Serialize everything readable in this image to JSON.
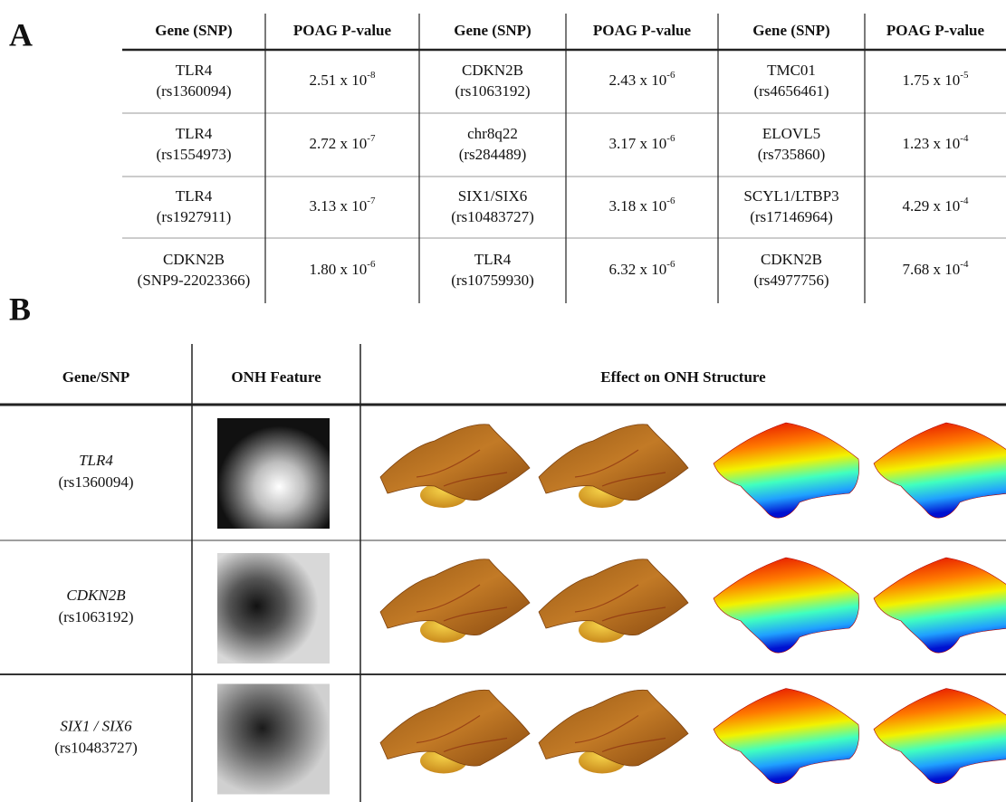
{
  "panel_a": {
    "label": "A",
    "table": {
      "header": [
        "Gene (SNP)",
        "POAG P-value",
        "Gene (SNP)",
        "POAG P-value",
        "Gene (SNP)",
        "POAG P-value"
      ],
      "rows": [
        [
          {
            "gene": "TLR4",
            "snp": "(rs1360094)"
          },
          {
            "mantissa": "2.51 x 10",
            "exponent": "-8"
          },
          {
            "gene": "CDKN2B",
            "snp": "(rs1063192)"
          },
          {
            "mantissa": "2.43 x 10",
            "exponent": "-6"
          },
          {
            "gene": "TMC01",
            "snp": "(rs4656461)"
          },
          {
            "mantissa": "1.75 x 10",
            "exponent": "-5"
          }
        ],
        [
          {
            "gene": "TLR4",
            "snp": "(rs1554973)"
          },
          {
            "mantissa": "2.72 x 10",
            "exponent": "-7"
          },
          {
            "gene": "chr8q22",
            "snp": "(rs284489)"
          },
          {
            "mantissa": "3.17 x 10",
            "exponent": "-6"
          },
          {
            "gene": "ELOVL5",
            "snp": "(rs735860)"
          },
          {
            "mantissa": "1.23 x 10",
            "exponent": "-4"
          }
        ],
        [
          {
            "gene": "TLR4",
            "snp": "(rs1927911)"
          },
          {
            "mantissa": "3.13 x 10",
            "exponent": "-7"
          },
          {
            "gene": "SIX1/SIX6",
            "snp": "(rs10483727)"
          },
          {
            "mantissa": "3.18 x 10",
            "exponent": "-6"
          },
          {
            "gene": "SCYL1/LTBP3",
            "snp": "(rs17146964)"
          },
          {
            "mantissa": "4.29 x 10",
            "exponent": "-4"
          }
        ],
        [
          {
            "gene": "CDKN2B",
            "snp": "(SNP9-22023366)"
          },
          {
            "mantissa": "1.80 x 10",
            "exponent": "-6"
          },
          {
            "gene": "TLR4",
            "snp": "(rs10759930)"
          },
          {
            "mantissa": "6.32 x 10",
            "exponent": "-6"
          },
          {
            "gene": "CDKN2B",
            "snp": "(rs4977756)"
          },
          {
            "mantissa": "7.68 x 10",
            "exponent": "-4"
          }
        ]
      ]
    }
  },
  "panel_b": {
    "label": "B",
    "table": {
      "header": [
        "Gene/SNP",
        "ONH Feature",
        "Effect on ONH Structure"
      ],
      "rows": [
        {
          "gene": "TLR4",
          "snp": "(rs1360094)"
        },
        {
          "gene": "CDKN2B",
          "snp": "(rs1063192)"
        },
        {
          "gene": "SIX1 / SIX6",
          "snp": "(rs10483727)"
        }
      ]
    }
  }
}
